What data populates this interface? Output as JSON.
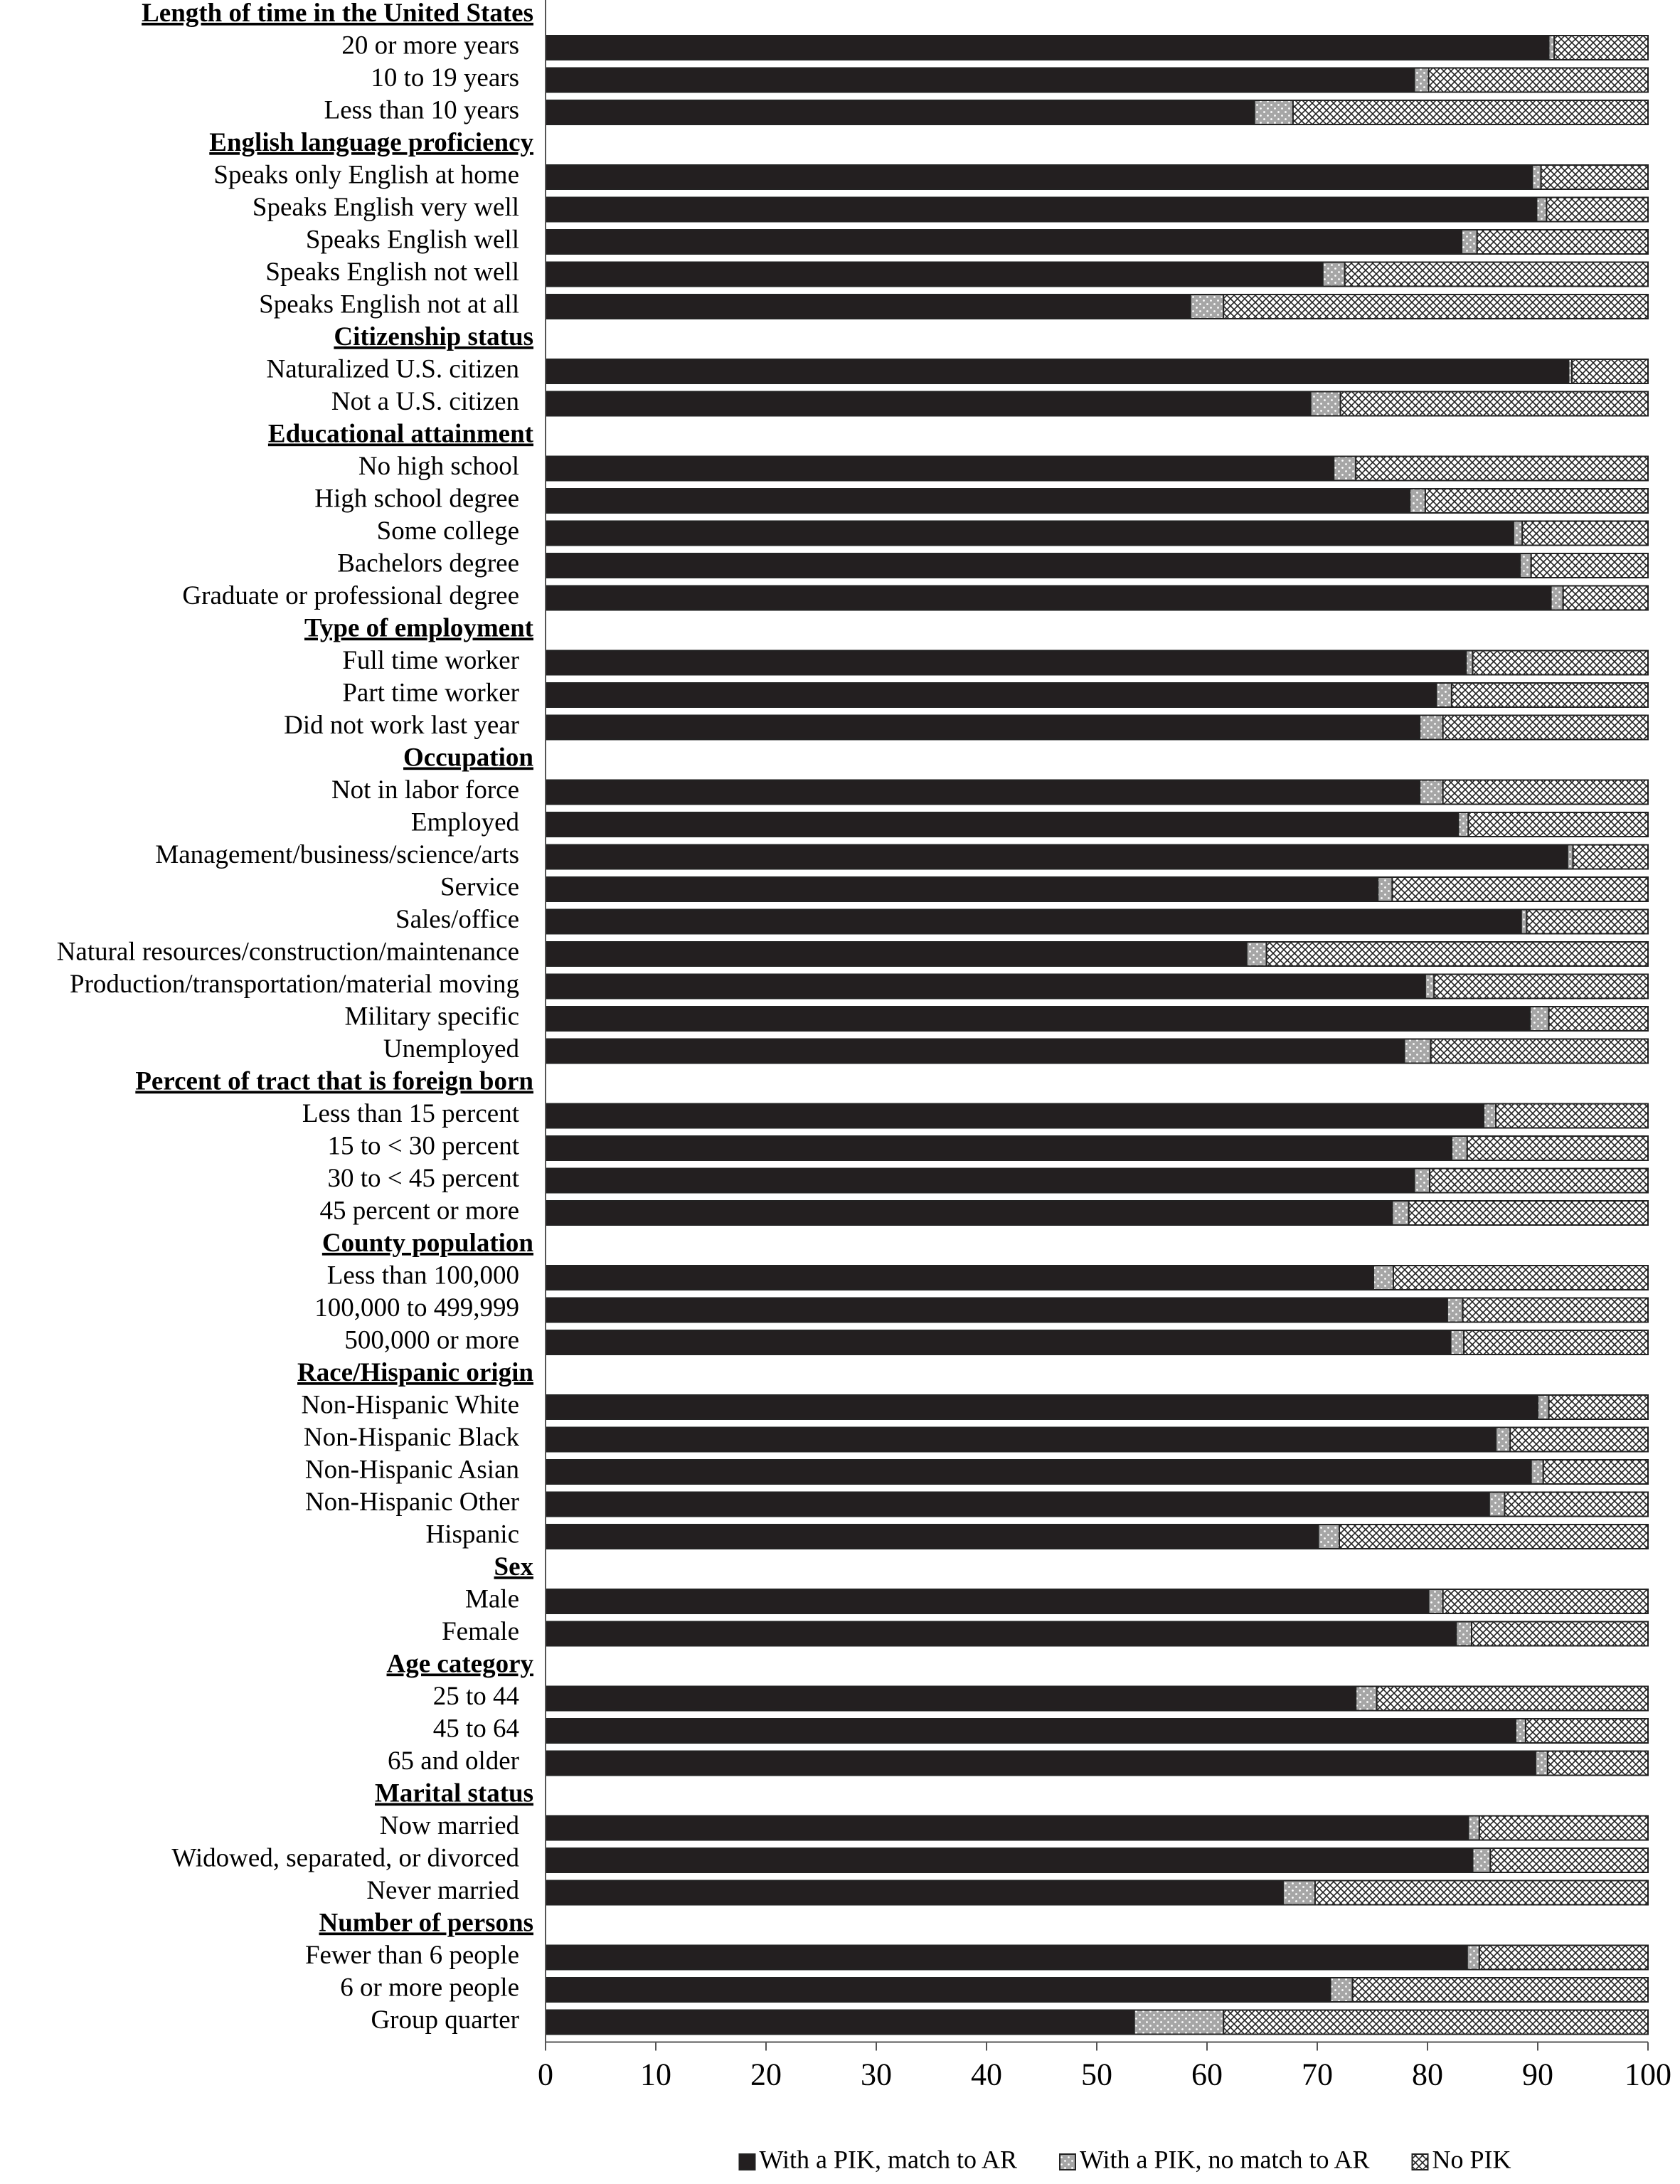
{
  "chart_data": {
    "type": "stacked-barh",
    "categories": [
      "Length of time in the United States",
      "20 or more years",
      "10 to 19 years",
      "Less than 10 years",
      "English language proficiency",
      "Speaks only English at home",
      "Speaks English very well",
      "Speaks English well",
      "Speaks English not well",
      "Speaks English not at all",
      "Citizenship status",
      "Naturalized U.S. citizen",
      "Not a U.S. citizen",
      "Educational attainment",
      "No high school",
      "High school degree",
      "Some college",
      "Bachelors degree",
      "Graduate or professional degree",
      "Type of employment",
      "Full time worker",
      "Part time worker",
      "Did not work last year",
      "Occupation",
      "Not in labor force",
      "Employed",
      "Management/business/science/arts",
      "Service",
      "Sales/office",
      "Natural resources/construction/maintenance",
      "Production/transportation/material moving",
      "Military specific",
      "Unemployed",
      "Percent of tract that is foreign born",
      "Less than 15 percent",
      "15 to < 30 percent",
      "30 to < 45 percent",
      "45 percent or more",
      "County population",
      "Less than 100,000",
      "100,000 to 499,999",
      "500,000 or more",
      "Race/Hispanic origin",
      "Non-Hispanic White",
      "Non-Hispanic Black",
      "Non-Hispanic Asian",
      "Non-Hispanic Other",
      "Hispanic",
      "Sex",
      "Male",
      "Female",
      "Age category",
      "25 to 44",
      "45 to 64",
      "65 and older",
      "Marital status",
      "Now married",
      "Widowed, separated, or divorced",
      "Never married",
      "Number of  persons",
      "Fewer than 6 people",
      "6 or more people",
      "Group quarter"
    ],
    "series": [
      {
        "name": "With a PIK, match to AR",
        "color": "#231f20",
        "pattern": "solid",
        "values": [
          null,
          91,
          78.8,
          64.3,
          null,
          89.5,
          89.9,
          83.1,
          70.5,
          58.5,
          null,
          92.8,
          69.4,
          null,
          71.5,
          78.4,
          87.8,
          88.4,
          91.2,
          null,
          83.5,
          80.8,
          79.3,
          null,
          79.3,
          82.8,
          92.7,
          75.5,
          88.5,
          63.6,
          79.8,
          89.3,
          77.9,
          null,
          85.1,
          82.2,
          78.8,
          76.8,
          null,
          75.1,
          81.8,
          82.1,
          null,
          90,
          86.2,
          89.4,
          85.6,
          70.1,
          null,
          80.1,
          82.6,
          null,
          73.5,
          88,
          89.8,
          null,
          83.7,
          84.1,
          66.9,
          null,
          83.6,
          71.2,
          53.4
        ]
      },
      {
        "name": "With a PIK, no match to AR",
        "color": "#a6a6a6",
        "pattern": "dots",
        "values": [
          null,
          0.5,
          1.3,
          3.5,
          null,
          0.8,
          0.9,
          1.4,
          2,
          3,
          null,
          0.3,
          2.7,
          null,
          2,
          1.4,
          0.8,
          1,
          1.1,
          null,
          0.6,
          1.4,
          2.1,
          null,
          2.1,
          0.9,
          0.5,
          1.3,
          0.5,
          1.8,
          0.8,
          1.7,
          2.4,
          null,
          1.1,
          1.4,
          1.4,
          1.5,
          null,
          1.8,
          1.4,
          1.2,
          null,
          1,
          1.3,
          1.1,
          1.4,
          1.9,
          null,
          1.3,
          1.4,
          null,
          1.9,
          0.9,
          1.1,
          null,
          1,
          1.6,
          2.9,
          null,
          1.1,
          2,
          8.1
        ]
      },
      {
        "name": "No PIK",
        "color": "#ffffff",
        "pattern": "crosshatch",
        "values": [
          null,
          8.5,
          19.9,
          32.2,
          null,
          9.7,
          9.2,
          15.5,
          27.5,
          38.5,
          null,
          6.9,
          27.9,
          null,
          26.5,
          20.2,
          11.4,
          10.6,
          7.7,
          null,
          15.9,
          17.8,
          18.6,
          null,
          18.6,
          16.3,
          6.8,
          23.2,
          11,
          34.6,
          19.4,
          9,
          19.7,
          null,
          13.8,
          16.4,
          19.8,
          21.7,
          null,
          23.1,
          16.8,
          16.7,
          null,
          9,
          12.5,
          9.5,
          13,
          28,
          null,
          18.6,
          16,
          null,
          24.6,
          11.1,
          9.1,
          null,
          15.3,
          14.3,
          30.2,
          null,
          15.3,
          26.8,
          38.5
        ]
      }
    ],
    "xlim": [
      0,
      100
    ],
    "xticks": [
      0,
      10,
      20,
      30,
      40,
      50,
      60,
      70,
      80,
      90,
      100
    ],
    "legend": "bottom"
  }
}
